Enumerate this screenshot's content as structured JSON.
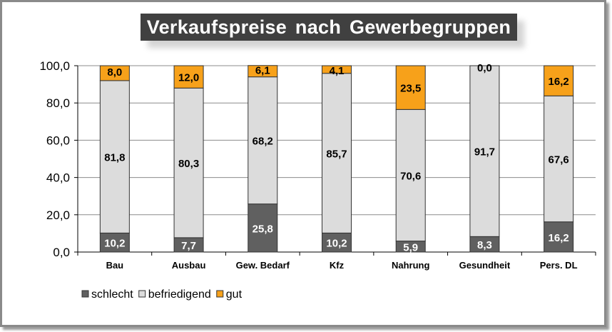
{
  "chart_data": {
    "type": "bar",
    "stacked": true,
    "title": "Verkaufspreise nach Gewerbegruppen",
    "xlabel": "",
    "ylabel": "",
    "ylim": [
      0,
      100
    ],
    "yticks": [
      "0,0",
      "20,0",
      "40,0",
      "60,0",
      "80,0",
      "100,0"
    ],
    "grid": true,
    "legend_position": "bottom-left",
    "categories": [
      "Bau",
      "Ausbau",
      "Gew. Bedarf",
      "Kfz",
      "Nahrung",
      "Gesundheit",
      "Pers. DL"
    ],
    "series": [
      {
        "name": "schlecht",
        "color": "#606060",
        "label_color": "#ffffff",
        "values": [
          10.2,
          7.7,
          25.8,
          10.2,
          5.9,
          8.3,
          16.2
        ],
        "labels": [
          "10,2",
          "7,7",
          "25,8",
          "10,2",
          "5,9",
          "8,3",
          "16,2"
        ]
      },
      {
        "name": "befriedigend",
        "color": "#dcdcdc",
        "label_color": "#000000",
        "values": [
          81.8,
          80.3,
          68.2,
          85.7,
          70.6,
          91.7,
          67.6
        ],
        "labels": [
          "81,8",
          "80,3",
          "68,2",
          "85,7",
          "70,6",
          "91,7",
          "67,6"
        ]
      },
      {
        "name": "gut",
        "color": "#f7a11a",
        "label_color": "#000000",
        "values": [
          8.0,
          12.0,
          6.1,
          4.1,
          23.5,
          0.0,
          16.2
        ],
        "labels": [
          "8,0",
          "12,0",
          "6,1",
          "4,1",
          "23,5",
          "0,0",
          "16,2"
        ]
      }
    ]
  }
}
